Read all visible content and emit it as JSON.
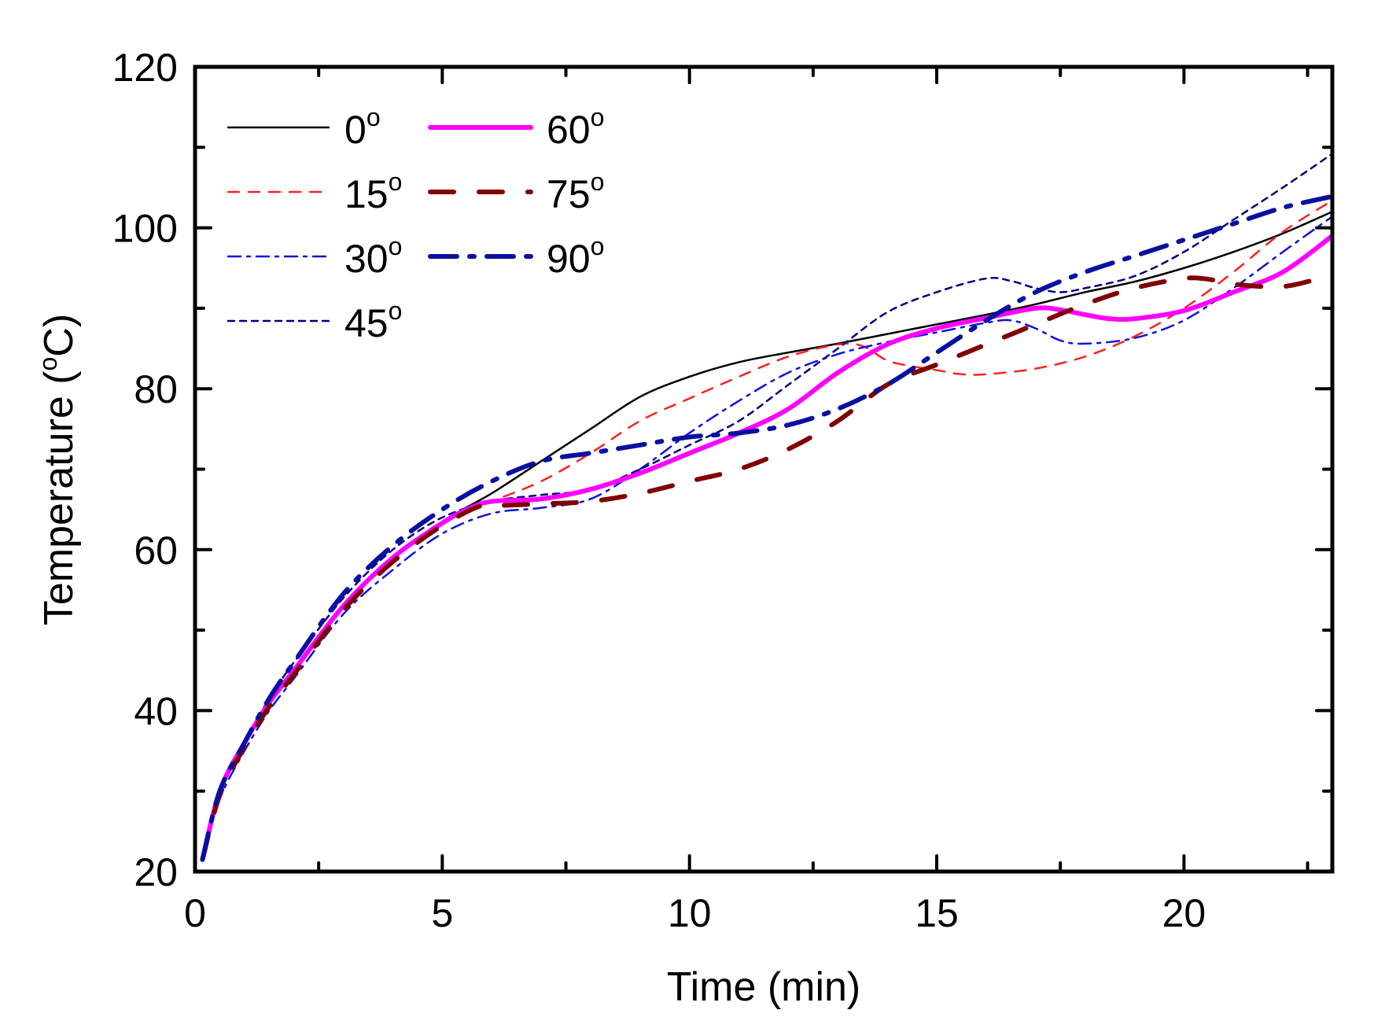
{
  "chart_data": {
    "type": "line",
    "title": "",
    "xlabel": "Time (min)",
    "ylabel": "Temperature (°C)",
    "ylabel_parts": {
      "main": "Temperature (",
      "sup": "o",
      "rest": "C)"
    },
    "xlim": [
      0,
      23
    ],
    "ylim": [
      20,
      120
    ],
    "x_ticks": [
      0,
      5,
      10,
      15,
      20
    ],
    "x_tick_labels": [
      "0",
      "5",
      "10",
      "15",
      "20"
    ],
    "x_minor_ticks": [
      2.5,
      7.5,
      12.5,
      17.5,
      22.5
    ],
    "y_ticks": [
      20,
      40,
      60,
      80,
      100,
      120
    ],
    "y_tick_labels": [
      "20",
      "40",
      "60",
      "80",
      "100",
      "120"
    ],
    "y_minor_ticks": [
      30,
      50,
      70,
      90,
      110
    ],
    "grid": false,
    "legend_position": "top-left",
    "legend_columns": 2,
    "series": [
      {
        "name": "0°",
        "label_main": "0",
        "color": "#000000",
        "style": "solid",
        "width": "thin",
        "x": [
          0.15,
          0.5,
          1,
          1.5,
          2,
          3,
          4,
          5,
          6,
          7,
          8,
          9,
          10,
          11,
          12,
          13,
          14,
          15,
          16,
          17,
          18,
          19,
          20,
          21,
          22,
          23
        ],
        "y": [
          21.5,
          30,
          36,
          41,
          45,
          53,
          59,
          63.5,
          67,
          71,
          75,
          79,
          81.5,
          83.3,
          84.5,
          85.6,
          86.8,
          88,
          89.2,
          90.5,
          92,
          93.3,
          95,
          97,
          99.3,
          102
        ]
      },
      {
        "name": "15°",
        "label_main": "15",
        "color": "#ff2020",
        "style": "dash",
        "width": "thin",
        "x": [
          0.15,
          0.5,
          1,
          1.5,
          2,
          3,
          4,
          5,
          6,
          7,
          8,
          9,
          10,
          11,
          12,
          13,
          13.5,
          14,
          14.5,
          15,
          15.5,
          16,
          17,
          18,
          19,
          20,
          21,
          22,
          23
        ],
        "y": [
          21.5,
          30,
          36,
          41,
          45,
          53,
          59,
          63.5,
          66,
          68.5,
          72,
          76,
          78.8,
          81.5,
          84,
          85.5,
          85.3,
          83.5,
          82.8,
          82.3,
          81.8,
          81.8,
          82.5,
          84,
          86.5,
          90,
          94.5,
          99.5,
          103.4
        ]
      },
      {
        "name": "30°",
        "label_main": "30",
        "color": "#1010e0",
        "style": "dashdot",
        "width": "thin",
        "x": [
          0.15,
          0.5,
          1,
          1.5,
          2,
          3,
          4,
          5,
          6,
          7,
          8,
          9,
          10,
          11,
          12,
          13,
          14,
          15,
          16,
          16.5,
          17,
          17.5,
          18,
          19,
          20,
          21,
          22,
          23
        ],
        "y": [
          21.5,
          29,
          35,
          40,
          44,
          52,
          57.5,
          62,
          64.5,
          65.2,
          66.3,
          70,
          74.5,
          78.5,
          82,
          84.3,
          85.8,
          87,
          88.2,
          88.5,
          87.5,
          86,
          85.6,
          86.3,
          88.5,
          92.5,
          97,
          101.4
        ]
      },
      {
        "name": "45°",
        "label_main": "45",
        "color": "#000080",
        "style": "dot",
        "width": "thin",
        "x": [
          0.15,
          0.5,
          1,
          1.5,
          2,
          3,
          4,
          5,
          6,
          7,
          8,
          9,
          10,
          11,
          12,
          13,
          14,
          15,
          16,
          16.5,
          17,
          17.5,
          18,
          19,
          20,
          21,
          22,
          23
        ],
        "y": [
          21.5,
          30,
          36,
          41.5,
          46,
          54,
          60,
          64,
          66,
          66.8,
          67.5,
          70,
          73,
          76,
          80.5,
          85,
          89.5,
          92,
          93.7,
          93.4,
          92.5,
          92,
          92.5,
          94,
          97,
          101,
          105,
          109.2
        ]
      },
      {
        "name": "60°",
        "label_main": "60",
        "color": "#ff00ff",
        "style": "solid",
        "width": "thick",
        "x": [
          0.15,
          0.5,
          1,
          1.5,
          2,
          3,
          4,
          5,
          5.5,
          6,
          7,
          8,
          9,
          10,
          11,
          12,
          13,
          14,
          15,
          16,
          17,
          17.5,
          18,
          18.5,
          19,
          20,
          21,
          22,
          23
        ],
        "y": [
          21.5,
          30,
          36,
          41,
          45,
          53,
          59,
          63.3,
          65,
          66,
          66.3,
          67.5,
          69.5,
          72,
          74.5,
          77.5,
          82,
          85.5,
          87.5,
          88.8,
          90,
          89.8,
          89.2,
          88.7,
          88.7,
          89.7,
          92,
          94.5,
          99
        ]
      },
      {
        "name": "75°",
        "label_main": "75",
        "color": "#800000",
        "style": "longdash",
        "width": "thick",
        "x": [
          0.15,
          0.5,
          1,
          1.5,
          2,
          3,
          4,
          5,
          5.8,
          6.2,
          7,
          8,
          9,
          10,
          11,
          12,
          13,
          14,
          15,
          16,
          17,
          18,
          19,
          20,
          20.5,
          21,
          22,
          22.9
        ],
        "y": [
          21.5,
          29.5,
          35.5,
          40.5,
          44.5,
          52.5,
          58.5,
          63,
          65.5,
          65.5,
          65.7,
          66,
          67,
          68.5,
          70,
          72.5,
          76,
          80.5,
          83,
          85.5,
          88,
          90.5,
          92.5,
          93.7,
          93.6,
          93,
          92.7,
          94
        ]
      },
      {
        "name": "90°",
        "label_main": "90",
        "color": "#0a10a0",
        "style": "dashdotlong",
        "width": "thick",
        "x": [
          0.15,
          0.5,
          1,
          1.5,
          2,
          3,
          4,
          5,
          6,
          7,
          8,
          9,
          10,
          11,
          12,
          13,
          14,
          15,
          16,
          17,
          18,
          19,
          20,
          21,
          22,
          23
        ],
        "y": [
          21.5,
          30,
          36,
          41.5,
          46,
          54.5,
          60.5,
          65,
          68.5,
          71,
          72,
          73,
          74,
          74.5,
          75.5,
          77.5,
          80.5,
          84.5,
          88.5,
          92,
          94.5,
          96.5,
          98.5,
          100.5,
          102.5,
          103.9
        ]
      }
    ]
  }
}
